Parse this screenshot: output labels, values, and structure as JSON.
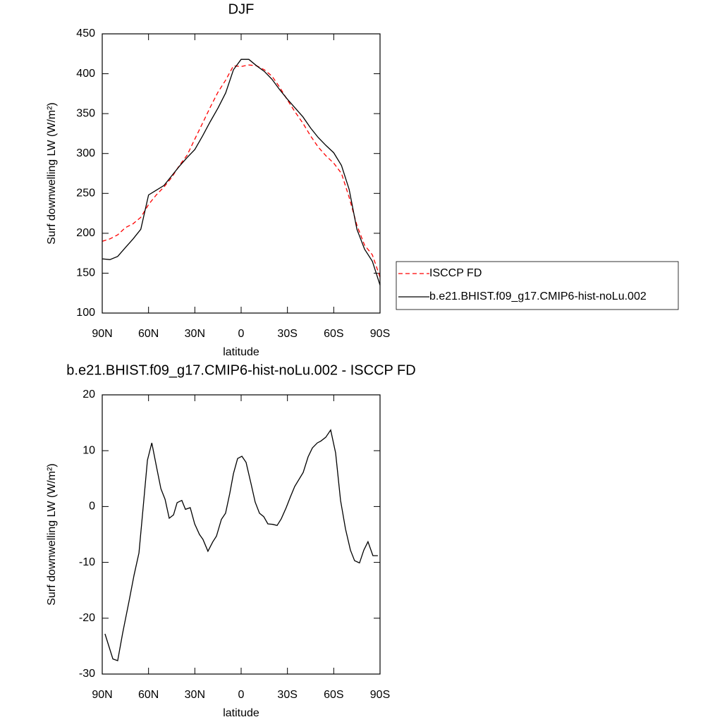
{
  "chart_data": [
    {
      "type": "line",
      "title": "DJF",
      "xlabel": "latitude",
      "ylabel": "Surf downwelling LW (W/m²)",
      "x": [
        90,
        85,
        80,
        75,
        70,
        65,
        60,
        55,
        50,
        45,
        40,
        35,
        30,
        25,
        20,
        15,
        10,
        5,
        0,
        -5,
        -10,
        -15,
        -20,
        -25,
        -30,
        -35,
        -40,
        -45,
        -50,
        -55,
        -60,
        -65,
        -70,
        -75,
        -80,
        -85,
        -90
      ],
      "series": [
        {
          "name": "ISCCP FD",
          "color": "#ff0000",
          "style": "dashed",
          "values": [
            190,
            193,
            198,
            207,
            212,
            220,
            236,
            248,
            258,
            270,
            285,
            298,
            318,
            338,
            358,
            377,
            392,
            410,
            409,
            411,
            410,
            405,
            397,
            383,
            367,
            352,
            338,
            322,
            308,
            297,
            288,
            275,
            245,
            210,
            185,
            173,
            145
          ]
        },
        {
          "name": "b.e21.BHIST.f09_g17.CMIP6-hist-noLu.002",
          "color": "#000000",
          "style": "solid",
          "values": [
            168,
            167,
            171,
            182,
            193,
            205,
            248,
            254,
            260,
            272,
            284,
            295,
            305,
            322,
            340,
            357,
            376,
            405,
            418,
            418,
            410,
            403,
            393,
            380,
            368,
            357,
            346,
            332,
            320,
            310,
            301,
            285,
            255,
            205,
            180,
            165,
            135
          ]
        }
      ],
      "xlim": [
        90,
        -90
      ],
      "xticks": [
        {
          "value": 90,
          "label": "90N"
        },
        {
          "value": 60,
          "label": "60N"
        },
        {
          "value": 30,
          "label": "30N"
        },
        0,
        {
          "value": -30,
          "label": "30S"
        },
        {
          "value": -60,
          "label": "60S"
        },
        {
          "value": -90,
          "label": "90S"
        }
      ],
      "ylim": [
        100,
        450
      ],
      "yticks": [
        100,
        150,
        200,
        250,
        300,
        350,
        400,
        450
      ],
      "legend": "right"
    },
    {
      "type": "line",
      "title": "b.e21.BHIST.f09_g17.CMIP6-hist-noLu.002 - ISCCP FD",
      "xlabel": "latitude",
      "ylabel": "Surf downwelling LW (W/m²)",
      "x": [
        88.2,
        83.1,
        80,
        76.8,
        72.6,
        69.4,
        66.2,
        63.5,
        60.7,
        57.9,
        54.8,
        52,
        49.3,
        46.6,
        43.8,
        41.5,
        38.4,
        36.1,
        33,
        30.1,
        27,
        24.7,
        21.5,
        18.3,
        16,
        12.8,
        10.1,
        7.4,
        5,
        2.3,
        -0.5,
        -3.2,
        -6.4,
        -9.1,
        -11.9,
        -14.6,
        -17.3,
        -20.5,
        -23.3,
        -26,
        -29.2,
        -31.9,
        -34.7,
        -40.2,
        -43.4,
        -46.2,
        -49.4,
        -51.6,
        -54.8,
        -58,
        -61.2,
        -64.4,
        -67.6,
        -70.8,
        -73.5,
        -76.7,
        -79.5,
        -82.2,
        -85.4,
        -88.6
      ],
      "series": [
        {
          "color": "#000000",
          "style": "solid",
          "values": [
            -22.8,
            -27.3,
            -27.6,
            -22.7,
            -16.9,
            -12.3,
            -8.3,
            -0.2,
            8.3,
            11.4,
            7.1,
            3.2,
            1.3,
            -2.1,
            -1.5,
            0.7,
            1.1,
            -0.5,
            -0.2,
            -3.1,
            -5,
            -5.9,
            -8,
            -6.3,
            -5.3,
            -2.3,
            -1.2,
            2.3,
            5.9,
            8.6,
            9,
            7.9,
            4.1,
            0.8,
            -1.2,
            -1.8,
            -3.1,
            -3.2,
            -3.4,
            -2.2,
            -0.2,
            1.7,
            3.6,
            6.1,
            8.9,
            10.5,
            11.4,
            11.7,
            12.4,
            13.7,
            9.6,
            1.1,
            -4,
            -7.8,
            -9.7,
            -10.1,
            -7.8,
            -6.3,
            -8.8,
            -8.8
          ]
        }
      ],
      "xlim": [
        90,
        -90
      ],
      "xticks": [
        {
          "value": 90,
          "label": "90N"
        },
        {
          "value": 60,
          "label": "60N"
        },
        {
          "value": 30,
          "label": "30N"
        },
        0,
        {
          "value": -30,
          "label": "30S"
        },
        {
          "value": -60,
          "label": "60S"
        },
        {
          "value": -90,
          "label": "90S"
        }
      ],
      "ylim": [
        -30,
        20
      ],
      "yticks": [
        -30,
        -20,
        -10,
        0,
        10,
        20
      ]
    }
  ]
}
